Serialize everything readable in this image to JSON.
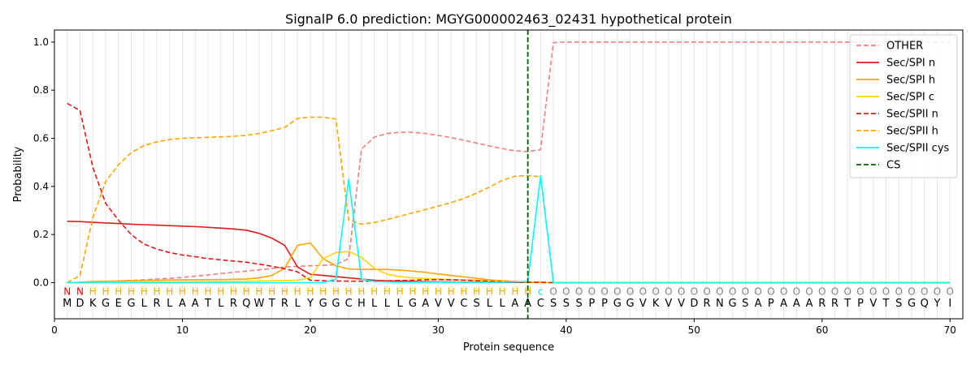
{
  "chart_data": {
    "type": "line",
    "title": "SignalP 6.0 prediction: MGYG000002463_02431 hypothetical protein",
    "xlabel": "Protein sequence",
    "ylabel": "Probability",
    "xlim": [
      0,
      71
    ],
    "ylim": [
      -0.15,
      1.05
    ],
    "x_ticks": [
      0,
      10,
      20,
      30,
      40,
      50,
      60,
      70
    ],
    "y_ticks": [
      0.0,
      0.2,
      0.4,
      0.6,
      0.8,
      1.0
    ],
    "grid": "vertical lines at each residue",
    "legend_position": "top-right",
    "sequence": [
      "M",
      "D",
      "K",
      "G",
      "E",
      "G",
      "L",
      "R",
      "L",
      "A",
      "A",
      "T",
      "L",
      "R",
      "Q",
      "W",
      "T",
      "R",
      "L",
      "Y",
      "G",
      "G",
      "C",
      "H",
      "L",
      "L",
      "L",
      "G",
      "A",
      "V",
      "V",
      "C",
      "S",
      "L",
      "L",
      "A",
      "A",
      "C",
      "S",
      "S",
      "S",
      "P",
      "P",
      "G",
      "G",
      "V",
      "K",
      "V",
      "V",
      "D",
      "R",
      "N",
      "G",
      "S",
      "A",
      "P",
      "A",
      "A",
      "A",
      "R",
      "R",
      "T",
      "P",
      "V",
      "T",
      "S",
      "G",
      "Q",
      "Y",
      "I"
    ],
    "region_labels": [
      "N",
      "N",
      "H",
      "H",
      "H",
      "H",
      "H",
      "H",
      "H",
      "H",
      "H",
      "H",
      "H",
      "H",
      "H",
      "H",
      "H",
      "H",
      "H",
      "H",
      "H",
      "H",
      "H",
      "H",
      "H",
      "H",
      "H",
      "H",
      "H",
      "H",
      "H",
      "H",
      "H",
      "H",
      "H",
      "H",
      "H",
      "c",
      "O",
      "O",
      "O",
      "O",
      "O",
      "O",
      "O",
      "O",
      "O",
      "O",
      "O",
      "O",
      "O",
      "O",
      "O",
      "O",
      "O",
      "O",
      "O",
      "O",
      "O",
      "O",
      "O",
      "O",
      "O",
      "O",
      "O",
      "O",
      "O",
      "O",
      "O",
      "O"
    ],
    "region_colors": {
      "N": "#ff0000",
      "H": "#ffa500",
      "c": "#00e5ee",
      "O": "#808080"
    },
    "cleavage_site": 37,
    "series": [
      {
        "name": "OTHER",
        "color": "#f08080",
        "dash": "dashed",
        "values": [
          0.0,
          0.0,
          0.003,
          0.005,
          0.007,
          0.009,
          0.012,
          0.015,
          0.018,
          0.022,
          0.027,
          0.032,
          0.038,
          0.043,
          0.048,
          0.053,
          0.059,
          0.065,
          0.068,
          0.07,
          0.072,
          0.075,
          0.1,
          0.555,
          0.605,
          0.62,
          0.625,
          0.625,
          0.62,
          0.612,
          0.603,
          0.592,
          0.58,
          0.568,
          0.557,
          0.548,
          0.545,
          0.553,
          0.998,
          1.0,
          1.0,
          1.0,
          1.0,
          1.0,
          1.0,
          1.0,
          1.0,
          1.0,
          1.0,
          1.0,
          1.0,
          1.0,
          1.0,
          1.0,
          1.0,
          1.0,
          1.0,
          1.0,
          1.0,
          1.0,
          1.0,
          1.0,
          1.0,
          1.0,
          1.0,
          1.0,
          1.0,
          1.0,
          1.0,
          1.0
        ]
      },
      {
        "name": "Sec/SPI n",
        "color": "#e31a1c",
        "dash": "solid",
        "values": [
          0.255,
          0.254,
          0.251,
          0.248,
          0.246,
          0.243,
          0.241,
          0.239,
          0.237,
          0.235,
          0.233,
          0.23,
          0.227,
          0.223,
          0.218,
          0.205,
          0.185,
          0.155,
          0.065,
          0.035,
          0.03,
          0.025,
          0.02,
          0.015,
          0.01,
          0.008,
          0.006,
          0.005,
          0.004,
          0.003,
          0.003,
          0.002,
          0.002,
          0.002,
          0.001,
          0.001,
          0.001,
          0.001,
          0.0,
          0.0,
          0.0,
          0.0,
          0.0,
          0.0,
          0.0,
          0.0,
          0.0,
          0.0,
          0.0,
          0.0,
          0.0,
          0.0,
          0.0,
          0.0,
          0.0,
          0.0,
          0.0,
          0.0,
          0.0,
          0.0,
          0.0,
          0.0,
          0.0,
          0.0,
          0.0,
          0.0,
          0.0,
          0.0,
          0.0,
          0.0
        ]
      },
      {
        "name": "Sec/SPI h",
        "color": "#ffa500",
        "dash": "solid",
        "values": [
          0.0,
          0.002,
          0.005,
          0.006,
          0.007,
          0.008,
          0.009,
          0.01,
          0.011,
          0.012,
          0.012,
          0.013,
          0.013,
          0.014,
          0.015,
          0.02,
          0.03,
          0.06,
          0.155,
          0.165,
          0.1,
          0.07,
          0.057,
          0.055,
          0.055,
          0.055,
          0.052,
          0.048,
          0.043,
          0.036,
          0.03,
          0.024,
          0.018,
          0.012,
          0.008,
          0.005,
          0.003,
          0.002,
          0.0,
          0.0,
          0.0,
          0.0,
          0.0,
          0.0,
          0.0,
          0.0,
          0.0,
          0.0,
          0.0,
          0.0,
          0.0,
          0.0,
          0.0,
          0.0,
          0.0,
          0.0,
          0.0,
          0.0,
          0.0,
          0.0,
          0.0,
          0.0,
          0.0,
          0.0,
          0.0,
          0.0,
          0.0,
          0.0,
          0.0,
          0.0
        ]
      },
      {
        "name": "Sec/SPI c",
        "color": "#ffd700",
        "dash": "solid",
        "values": [
          0.0,
          0.0,
          0.0,
          0.001,
          0.001,
          0.002,
          0.002,
          0.003,
          0.003,
          0.004,
          0.004,
          0.005,
          0.005,
          0.006,
          0.006,
          0.007,
          0.008,
          0.009,
          0.01,
          0.02,
          0.1,
          0.125,
          0.13,
          0.105,
          0.06,
          0.035,
          0.025,
          0.02,
          0.017,
          0.015,
          0.013,
          0.012,
          0.01,
          0.008,
          0.006,
          0.004,
          0.002,
          0.001,
          0.0,
          0.0,
          0.0,
          0.0,
          0.0,
          0.0,
          0.0,
          0.0,
          0.0,
          0.0,
          0.0,
          0.0,
          0.0,
          0.0,
          0.0,
          0.0,
          0.0,
          0.0,
          0.0,
          0.0,
          0.0,
          0.0,
          0.0,
          0.0,
          0.0,
          0.0,
          0.0,
          0.0,
          0.0,
          0.0,
          0.0,
          0.0
        ]
      },
      {
        "name": "Sec/SPII n",
        "color": "#e31a1c",
        "dash": "dashed",
        "values": [
          0.745,
          0.715,
          0.48,
          0.33,
          0.26,
          0.2,
          0.16,
          0.14,
          0.125,
          0.115,
          0.108,
          0.1,
          0.095,
          0.09,
          0.085,
          0.077,
          0.068,
          0.058,
          0.045,
          0.01,
          0.008,
          0.007,
          0.006,
          0.006,
          0.007,
          0.008,
          0.009,
          0.01,
          0.012,
          0.013,
          0.012,
          0.01,
          0.008,
          0.006,
          0.004,
          0.003,
          0.002,
          0.001,
          0.0,
          0.0,
          0.0,
          0.0,
          0.0,
          0.0,
          0.0,
          0.0,
          0.0,
          0.0,
          0.0,
          0.0,
          0.0,
          0.0,
          0.0,
          0.0,
          0.0,
          0.0,
          0.0,
          0.0,
          0.0,
          0.0,
          0.0,
          0.0,
          0.0,
          0.0,
          0.0,
          0.0,
          0.0,
          0.0,
          0.0,
          0.0
        ]
      },
      {
        "name": "Sec/SPII h",
        "color": "#ffa500",
        "dash": "dashed",
        "values": [
          0.0,
          0.03,
          0.27,
          0.42,
          0.49,
          0.54,
          0.57,
          0.585,
          0.595,
          0.6,
          0.602,
          0.604,
          0.606,
          0.608,
          0.612,
          0.62,
          0.632,
          0.645,
          0.683,
          0.688,
          0.688,
          0.68,
          0.26,
          0.243,
          0.25,
          0.262,
          0.276,
          0.29,
          0.304,
          0.318,
          0.333,
          0.35,
          0.372,
          0.397,
          0.425,
          0.442,
          0.445,
          0.44,
          0.0,
          0.0,
          0.0,
          0.0,
          0.0,
          0.0,
          0.0,
          0.0,
          0.0,
          0.0,
          0.0,
          0.0,
          0.0,
          0.0,
          0.0,
          0.0,
          0.0,
          0.0,
          0.0,
          0.0,
          0.0,
          0.0,
          0.0,
          0.0,
          0.0,
          0.0,
          0.0,
          0.0,
          0.0,
          0.0,
          0.0,
          0.0
        ]
      },
      {
        "name": "Sec/SPII cys",
        "color": "#00ffff",
        "dash": "solid",
        "values": [
          0.0,
          0.0,
          0.0,
          0.0,
          0.0,
          0.0,
          0.0,
          0.0,
          0.0,
          0.0,
          0.0,
          0.0,
          0.0,
          0.0,
          0.0,
          0.0,
          0.0,
          0.0,
          0.0,
          0.0,
          0.0,
          0.015,
          0.43,
          0.015,
          0.005,
          0.003,
          0.002,
          0.002,
          0.002,
          0.002,
          0.002,
          0.002,
          0.002,
          0.002,
          0.002,
          0.003,
          0.005,
          0.445,
          0.0,
          0.0,
          0.0,
          0.0,
          0.0,
          0.0,
          0.0,
          0.0,
          0.0,
          0.0,
          0.0,
          0.0,
          0.0,
          0.0,
          0.0,
          0.0,
          0.0,
          0.0,
          0.0,
          0.0,
          0.0,
          0.0,
          0.0,
          0.0,
          0.0,
          0.0,
          0.0,
          0.0,
          0.0,
          0.0,
          0.0,
          0.0
        ]
      }
    ],
    "legend_entries": [
      {
        "name": "OTHER",
        "color": "#f08080",
        "dash": "dashed"
      },
      {
        "name": "Sec/SPI n",
        "color": "#e31a1c",
        "dash": "solid"
      },
      {
        "name": "Sec/SPI h",
        "color": "#ffa500",
        "dash": "solid"
      },
      {
        "name": "Sec/SPI c",
        "color": "#ffd700",
        "dash": "solid"
      },
      {
        "name": "Sec/SPII n",
        "color": "#e31a1c",
        "dash": "dashed"
      },
      {
        "name": "Sec/SPII h",
        "color": "#ffa500",
        "dash": "dashed"
      },
      {
        "name": "Sec/SPII cys",
        "color": "#00ffff",
        "dash": "solid"
      },
      {
        "name": "CS",
        "color": "#006400",
        "dash": "dashed"
      }
    ]
  }
}
